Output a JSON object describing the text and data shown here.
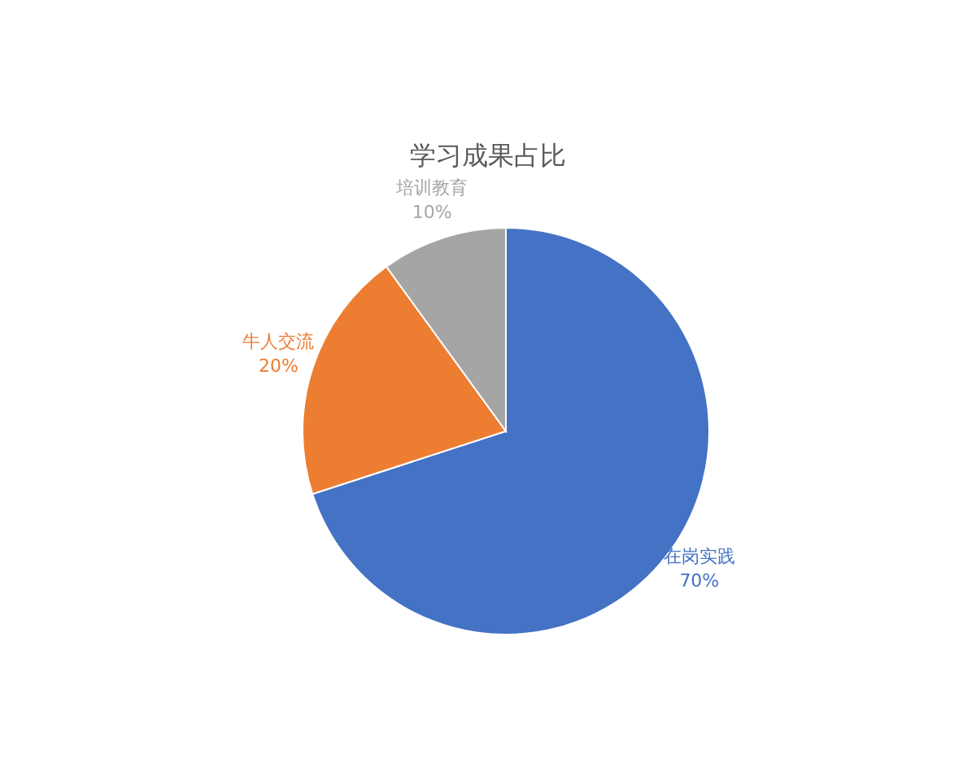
{
  "chart_data": {
    "type": "pie",
    "title": "学习成果占比",
    "categories": [
      "在岗实践",
      "牛人交流",
      "培训教育"
    ],
    "values": [
      70,
      20,
      10
    ],
    "colors": [
      "#4472c4",
      "#ed7d31",
      "#a5a5a5"
    ],
    "value_labels": [
      "70%",
      "20%",
      "10%"
    ],
    "legend": false
  }
}
